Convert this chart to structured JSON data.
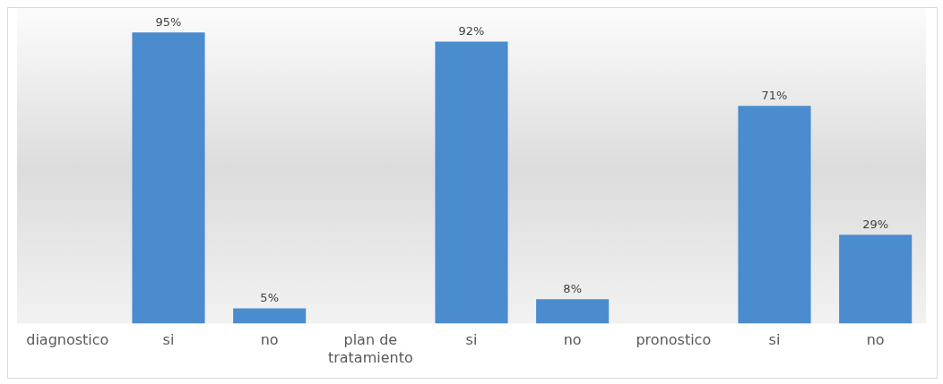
{
  "chart_data": {
    "type": "bar",
    "categories": [
      "diagnostico",
      "si",
      "no",
      "plan de tratamiento",
      "si",
      "no",
      "pronostico",
      "si",
      "no"
    ],
    "values": [
      null,
      95,
      5,
      null,
      92,
      8,
      null,
      71,
      29
    ],
    "color": "#4a8cce",
    "value_labels": [
      null,
      "95%",
      "5%",
      null,
      "92%",
      "8%",
      null,
      "71%",
      "29%"
    ],
    "grid": false,
    "legend": false
  }
}
